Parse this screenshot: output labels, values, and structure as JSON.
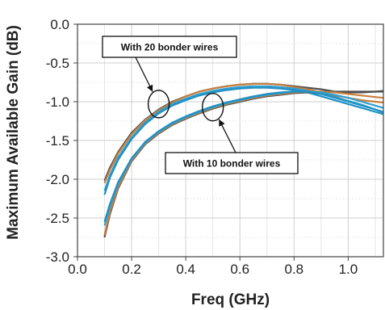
{
  "chart_data": {
    "type": "line",
    "title": "",
    "xlabel": "Freq (GHz)",
    "ylabel": "Maximum Available Gain (dB)",
    "xlim": [
      0.0,
      1.13
    ],
    "ylim": [
      -3.0,
      0.0
    ],
    "xticks": [
      "0.0",
      "0.2",
      "0.4",
      "0.6",
      "0.8",
      "1.0"
    ],
    "yticks": [
      "0.0",
      "-0.5",
      "-1.0",
      "-1.5",
      "-2.0",
      "-2.5",
      "-3.0"
    ],
    "grid": true,
    "legend": "none",
    "annotations": [
      {
        "text": "With 20 bonder wires",
        "target": [
          0.3,
          -1.03
        ]
      },
      {
        "text": "With 10 bonder wires",
        "target": [
          0.5,
          -1.07
        ]
      }
    ],
    "series": [
      {
        "color": "#505050",
        "x": [
          0.1,
          0.12,
          0.15,
          0.2,
          0.25,
          0.3,
          0.35,
          0.4,
          0.45,
          0.5,
          0.55,
          0.6,
          0.65,
          0.7,
          0.75,
          0.8,
          0.85,
          0.9,
          0.95,
          1.0,
          1.05,
          1.1,
          1.13
        ],
        "y": [
          -2.02,
          -1.85,
          -1.65,
          -1.4,
          -1.23,
          -1.1,
          -1.0,
          -0.93,
          -0.87,
          -0.83,
          -0.8,
          -0.78,
          -0.77,
          -0.77,
          -0.78,
          -0.8,
          -0.82,
          -0.84,
          -0.87,
          -0.88,
          -0.88,
          -0.87,
          -0.86
        ]
      },
      {
        "color": "#c87f3c",
        "x": [
          0.1,
          0.12,
          0.15,
          0.2,
          0.25,
          0.3,
          0.35,
          0.4,
          0.45,
          0.5,
          0.55,
          0.6,
          0.65,
          0.7,
          0.75,
          0.8,
          0.85,
          0.9,
          0.95,
          1.0,
          1.05,
          1.1,
          1.13
        ],
        "y": [
          -2.05,
          -1.88,
          -1.67,
          -1.42,
          -1.24,
          -1.11,
          -1.01,
          -0.93,
          -0.87,
          -0.83,
          -0.8,
          -0.78,
          -0.77,
          -0.77,
          -0.78,
          -0.81,
          -0.84,
          -0.88,
          -0.92,
          -0.95,
          -0.98,
          -1.0,
          -1.01
        ]
      },
      {
        "color": "#2fa0d0",
        "x": [
          0.1,
          0.12,
          0.15,
          0.2,
          0.25,
          0.3,
          0.35,
          0.4,
          0.45,
          0.5,
          0.55,
          0.6,
          0.65,
          0.7,
          0.75,
          0.8,
          0.85,
          0.9,
          0.95,
          1.0,
          1.05,
          1.1,
          1.13
        ],
        "y": [
          -2.15,
          -1.95,
          -1.72,
          -1.46,
          -1.27,
          -1.13,
          -1.03,
          -0.96,
          -0.9,
          -0.86,
          -0.83,
          -0.81,
          -0.8,
          -0.8,
          -0.81,
          -0.83,
          -0.86,
          -0.9,
          -0.95,
          -1.0,
          -1.05,
          -1.1,
          -1.13
        ]
      },
      {
        "color": "#2090c4",
        "x": [
          0.1,
          0.12,
          0.15,
          0.2,
          0.25,
          0.3,
          0.35,
          0.4,
          0.45,
          0.5,
          0.55,
          0.6,
          0.65,
          0.7,
          0.75,
          0.8,
          0.85,
          0.9,
          0.95,
          1.0,
          1.05,
          1.1,
          1.13
        ],
        "y": [
          -2.2,
          -1.98,
          -1.75,
          -1.48,
          -1.29,
          -1.15,
          -1.05,
          -0.98,
          -0.92,
          -0.88,
          -0.85,
          -0.83,
          -0.82,
          -0.82,
          -0.83,
          -0.85,
          -0.88,
          -0.93,
          -0.98,
          -1.03,
          -1.08,
          -1.13,
          -1.16
        ]
      },
      {
        "color": "#505050",
        "x": [
          0.1,
          0.12,
          0.15,
          0.2,
          0.25,
          0.3,
          0.35,
          0.4,
          0.45,
          0.5,
          0.55,
          0.6,
          0.65,
          0.7,
          0.75,
          0.8,
          0.85,
          0.9,
          0.95,
          1.0,
          1.05,
          1.1,
          1.13
        ],
        "y": [
          -2.75,
          -2.45,
          -2.12,
          -1.77,
          -1.55,
          -1.41,
          -1.3,
          -1.22,
          -1.15,
          -1.09,
          -1.04,
          -1.0,
          -0.96,
          -0.93,
          -0.91,
          -0.89,
          -0.88,
          -0.87,
          -0.87,
          -0.87,
          -0.87,
          -0.87,
          -0.87
        ]
      },
      {
        "color": "#c87f3c",
        "x": [
          0.1,
          0.12,
          0.15,
          0.2,
          0.25,
          0.3,
          0.35,
          0.4,
          0.45,
          0.5,
          0.55,
          0.6,
          0.65,
          0.7,
          0.75,
          0.8,
          0.85,
          0.9,
          0.95,
          1.0,
          1.05,
          1.1,
          1.13
        ],
        "y": [
          -2.72,
          -2.42,
          -2.1,
          -1.76,
          -1.54,
          -1.4,
          -1.29,
          -1.21,
          -1.14,
          -1.08,
          -1.03,
          -0.99,
          -0.95,
          -0.92,
          -0.9,
          -0.88,
          -0.87,
          -0.87,
          -0.88,
          -0.9,
          -0.92,
          -0.94,
          -0.95
        ]
      },
      {
        "color": "#2fa0d0",
        "x": [
          0.1,
          0.12,
          0.15,
          0.2,
          0.25,
          0.3,
          0.35,
          0.4,
          0.45,
          0.5,
          0.55,
          0.6,
          0.65,
          0.7,
          0.75,
          0.8,
          0.85,
          0.9,
          0.95,
          1.0,
          1.05,
          1.1,
          1.13
        ],
        "y": [
          -2.6,
          -2.35,
          -2.06,
          -1.74,
          -1.53,
          -1.39,
          -1.28,
          -1.2,
          -1.13,
          -1.07,
          -1.02,
          -0.98,
          -0.94,
          -0.91,
          -0.89,
          -0.87,
          -0.87,
          -0.88,
          -0.91,
          -0.95,
          -1.0,
          -1.05,
          -1.08
        ]
      },
      {
        "color": "#2090c4",
        "x": [
          0.1,
          0.12,
          0.15,
          0.2,
          0.25,
          0.3,
          0.35,
          0.4,
          0.45,
          0.5,
          0.55,
          0.6,
          0.65,
          0.7,
          0.75,
          0.8,
          0.85,
          0.9,
          0.95,
          1.0,
          1.05,
          1.1,
          1.13
        ],
        "y": [
          -2.55,
          -2.32,
          -2.04,
          -1.73,
          -1.52,
          -1.38,
          -1.27,
          -1.19,
          -1.12,
          -1.06,
          -1.01,
          -0.97,
          -0.93,
          -0.9,
          -0.88,
          -0.87,
          -0.87,
          -0.9,
          -0.94,
          -0.99,
          -1.04,
          -1.1,
          -1.14
        ]
      }
    ]
  }
}
